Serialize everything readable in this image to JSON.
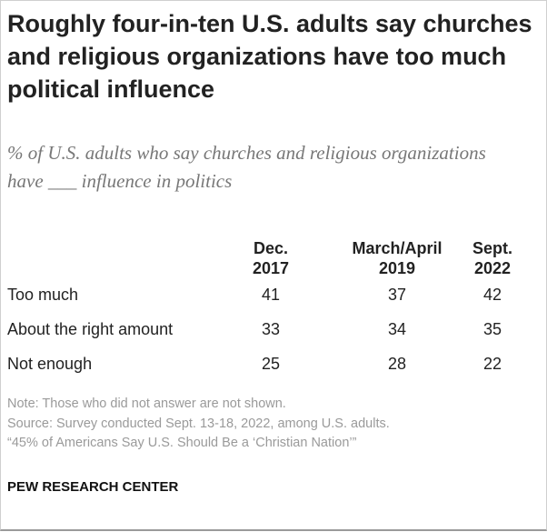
{
  "title": "Roughly four-in-ten U.S. adults say churches and religious organizations have too much political influence",
  "subtitle": "% of U.S. adults who say churches and religious organizations have ___ influence in politics",
  "chart_data": {
    "type": "table",
    "columns": [
      {
        "line1": "Dec.",
        "line2": "2017"
      },
      {
        "line1": "March/April",
        "line2": "2019"
      },
      {
        "line1": "Sept.",
        "line2": "2022"
      }
    ],
    "rows": [
      {
        "label": "Too much",
        "values": [
          "41",
          "37",
          "42"
        ]
      },
      {
        "label": "About the right amount",
        "values": [
          "33",
          "34",
          "35"
        ]
      },
      {
        "label": "Not enough",
        "values": [
          "25",
          "28",
          "22"
        ]
      }
    ]
  },
  "note": "Note: Those who did not answer are not shown.",
  "source": "Source: Survey conducted Sept. 13-18, 2022, among U.S. adults.",
  "report": "“45% of Americans Say U.S. Should Be a ‘Christian Nation’”",
  "brand": "PEW RESEARCH CENTER"
}
